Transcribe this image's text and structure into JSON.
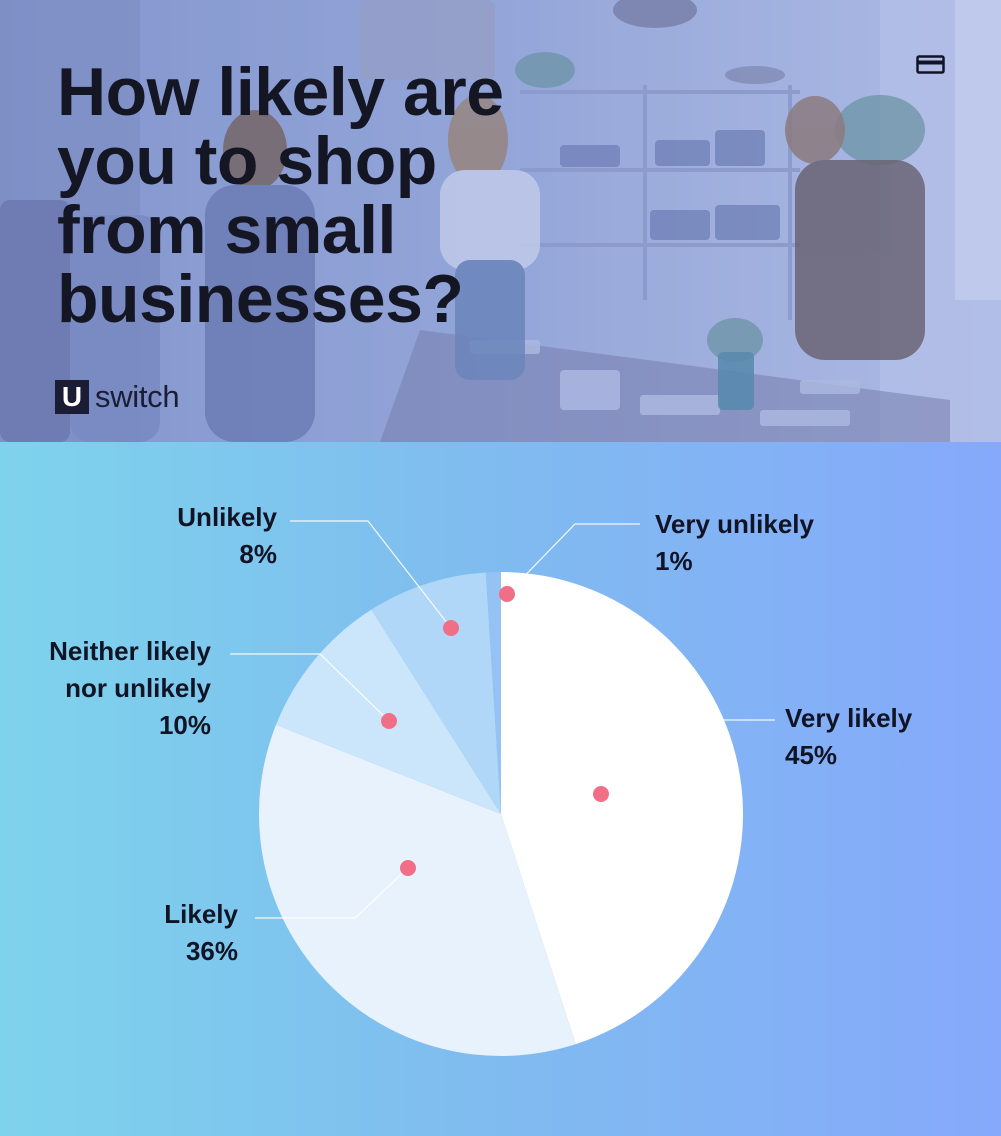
{
  "header": {
    "title": "How likely are you to shop from small businesses?",
    "logo_mark": "U",
    "logo_word": "switch",
    "card_icon": "credit-card-icon",
    "photo": "shop-interior-photo"
  },
  "colors": {
    "title_text": "#151624",
    "gradient_left": "#7ed3ec",
    "gradient_right": "#86a9fb",
    "marker": "#f16f86"
  },
  "chart_data": {
    "type": "pie",
    "title": "How likely are you to shop from small businesses?",
    "unit": "%",
    "start": "12 o'clock, clockwise",
    "slices": [
      {
        "label": "Very likely",
        "value": 45,
        "display": "45%",
        "color": "#ffffff"
      },
      {
        "label": "Likely",
        "value": 36,
        "display": "36%",
        "color": "#e7f2fc"
      },
      {
        "label": "Neither likely nor unlikely",
        "value": 10,
        "display": "10%",
        "color": "#cbe5fa"
      },
      {
        "label": "Unlikely",
        "value": 8,
        "display": "8%",
        "color": "#b0d6f8"
      },
      {
        "label": "Very unlikely",
        "value": 1,
        "display": "1%",
        "color": "#94c2f3"
      }
    ],
    "labels": {
      "very_likely": {
        "line1": "Very likely",
        "line2": "45%"
      },
      "likely": {
        "line1": "Likely",
        "line2": "36%"
      },
      "neither": {
        "line1": "Neither likely",
        "line2": "nor unlikely",
        "line3": "10%"
      },
      "unlikely": {
        "line1": "Unlikely",
        "line2": "8%"
      },
      "very_unlikely": {
        "line1": "Very unlikely",
        "line2": "1%"
      }
    }
  }
}
